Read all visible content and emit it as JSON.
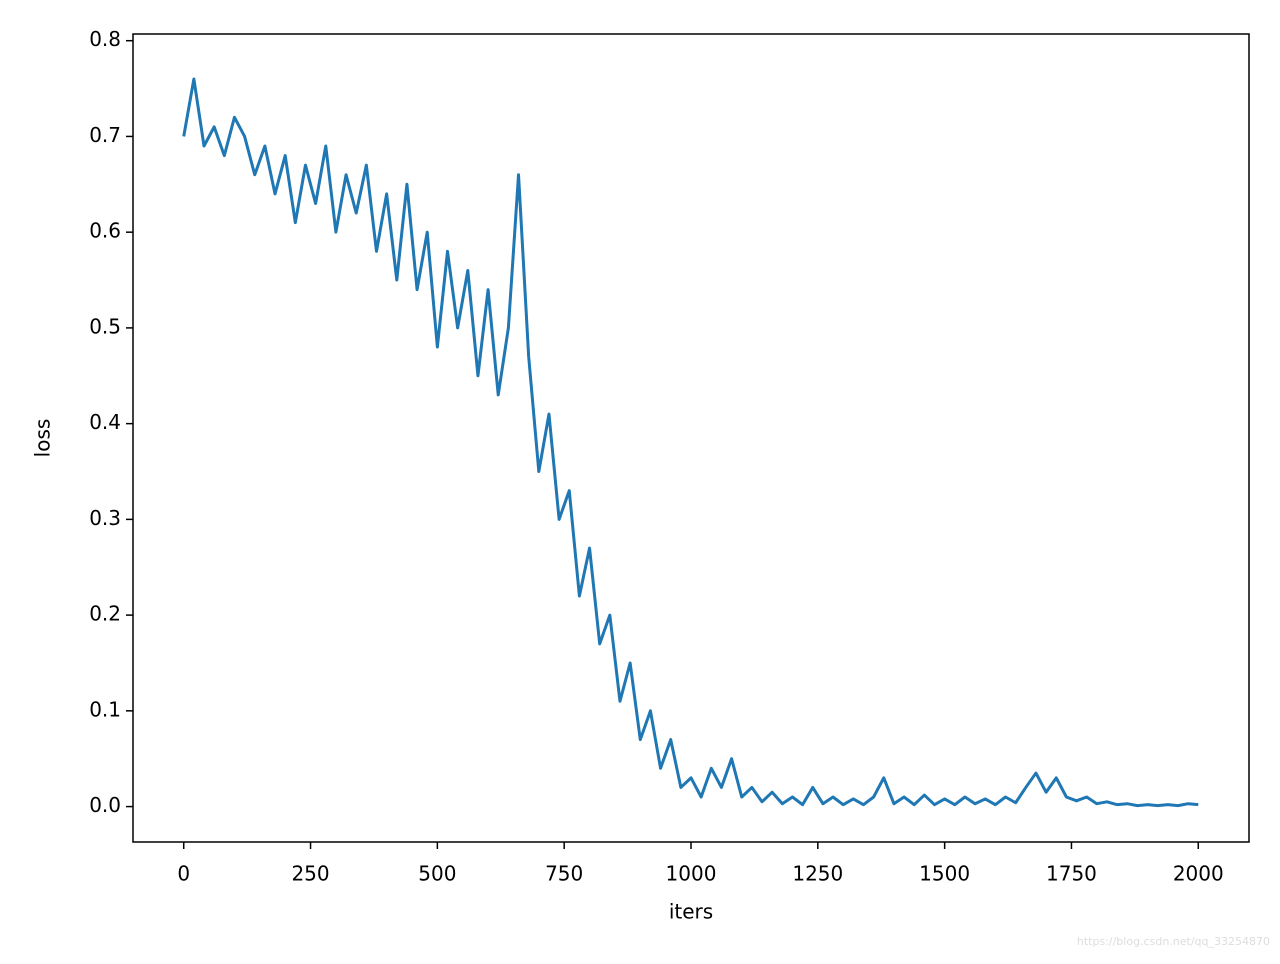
{
  "chart_data": {
    "type": "line",
    "xlabel": "iters",
    "ylabel": "loss",
    "watermark": "https://blog.csdn.net/qq_33254870",
    "x": [
      0,
      20,
      40,
      60,
      80,
      100,
      120,
      140,
      160,
      180,
      200,
      220,
      240,
      260,
      280,
      300,
      320,
      340,
      360,
      380,
      400,
      420,
      440,
      460,
      480,
      500,
      520,
      540,
      560,
      580,
      600,
      620,
      640,
      660,
      680,
      700,
      720,
      740,
      760,
      780,
      800,
      820,
      840,
      860,
      880,
      900,
      920,
      940,
      960,
      980,
      1000,
      1020,
      1040,
      1060,
      1080,
      1100,
      1120,
      1140,
      1160,
      1180,
      1200,
      1220,
      1240,
      1260,
      1280,
      1300,
      1320,
      1340,
      1360,
      1380,
      1400,
      1420,
      1440,
      1460,
      1480,
      1500,
      1520,
      1540,
      1560,
      1580,
      1600,
      1620,
      1640,
      1660,
      1680,
      1700,
      1720,
      1740,
      1760,
      1780,
      1800,
      1820,
      1840,
      1860,
      1880,
      1900,
      1920,
      1940,
      1960,
      1980,
      2000
    ],
    "series": [
      {
        "color": "#1f77b4",
        "values": [
          0.7,
          0.76,
          0.69,
          0.71,
          0.68,
          0.72,
          0.7,
          0.66,
          0.69,
          0.64,
          0.68,
          0.61,
          0.67,
          0.63,
          0.69,
          0.6,
          0.66,
          0.62,
          0.67,
          0.58,
          0.64,
          0.55,
          0.65,
          0.54,
          0.6,
          0.48,
          0.58,
          0.5,
          0.56,
          0.45,
          0.54,
          0.43,
          0.5,
          0.66,
          0.47,
          0.35,
          0.41,
          0.3,
          0.33,
          0.22,
          0.27,
          0.17,
          0.2,
          0.11,
          0.15,
          0.07,
          0.1,
          0.04,
          0.07,
          0.02,
          0.03,
          0.01,
          0.04,
          0.02,
          0.05,
          0.01,
          0.02,
          0.005,
          0.015,
          0.003,
          0.01,
          0.002,
          0.02,
          0.003,
          0.01,
          0.002,
          0.008,
          0.002,
          0.01,
          0.03,
          0.003,
          0.01,
          0.002,
          0.012,
          0.002,
          0.008,
          0.002,
          0.01,
          0.003,
          0.008,
          0.002,
          0.01,
          0.004,
          0.02,
          0.035,
          0.015,
          0.03,
          0.01,
          0.006,
          0.01,
          0.003,
          0.005,
          0.002,
          0.003,
          0.001,
          0.002,
          0.001,
          0.002,
          0.001,
          0.003,
          0.002
        ]
      }
    ],
    "xlim": [
      -100,
      2100
    ],
    "xticks": [
      0,
      250,
      500,
      750,
      1000,
      1250,
      1500,
      1750,
      2000
    ],
    "ylim": [
      -0.037,
      0.807
    ],
    "yticks": [
      {
        "value": 0,
        "label": "0.0"
      },
      0.1,
      0.2,
      0.3,
      0.4,
      0.5,
      0.6,
      0.7,
      0.8
    ]
  }
}
